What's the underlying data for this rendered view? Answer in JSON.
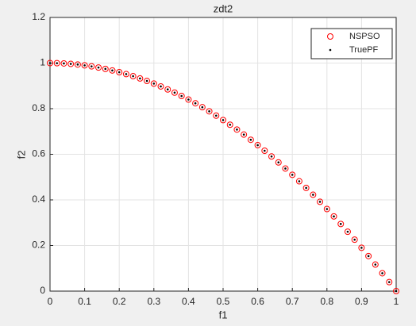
{
  "chart_data": {
    "type": "scatter",
    "title": "zdt2",
    "x_label": "f1",
    "y_label": "f2",
    "xlim": [
      0,
      1
    ],
    "ylim": [
      0,
      1.2
    ],
    "xticks": [
      0,
      0.1,
      0.2,
      0.3,
      0.4,
      0.5,
      0.6,
      0.7,
      0.8,
      0.9,
      1
    ],
    "yticks": [
      0,
      0.2,
      0.4,
      0.6,
      0.8,
      1,
      1.2
    ],
    "grid": true,
    "legend": "northeast",
    "series": [
      {
        "name": "NSPSO",
        "color": "#ff0000",
        "marker": "circle",
        "x": [
          0,
          0.02,
          0.04,
          0.06,
          0.08,
          0.1,
          0.12,
          0.14,
          0.16,
          0.18,
          0.2,
          0.22,
          0.24,
          0.26,
          0.28,
          0.3,
          0.32,
          0.34,
          0.36,
          0.38,
          0.4,
          0.42,
          0.44,
          0.46,
          0.48,
          0.5,
          0.52,
          0.54,
          0.56,
          0.58,
          0.6,
          0.62,
          0.64,
          0.66,
          0.68,
          0.7,
          0.72,
          0.74,
          0.76,
          0.78,
          0.8,
          0.82,
          0.84,
          0.86,
          0.88,
          0.9,
          0.92,
          0.94,
          0.96,
          0.98,
          1
        ],
        "values": [
          1,
          0.9996,
          0.9984,
          0.9964,
          0.9936,
          0.99,
          0.9856,
          0.9804,
          0.9744,
          0.9676,
          0.96,
          0.9516,
          0.9424,
          0.9324,
          0.9216,
          0.91,
          0.8976,
          0.8844,
          0.8704,
          0.8556,
          0.84,
          0.8236,
          0.8064,
          0.7884,
          0.7696,
          0.75,
          0.7296,
          0.7084,
          0.6864,
          0.6636,
          0.64,
          0.6156,
          0.5904,
          0.5644,
          0.5376,
          0.51,
          0.4816,
          0.4524,
          0.4224,
          0.3916,
          0.36,
          0.3276,
          0.2944,
          0.2604,
          0.2256,
          0.19,
          0.1536,
          0.1164,
          0.0784,
          0.0396,
          0
        ]
      },
      {
        "name": "TruePF",
        "color": "#000000",
        "marker": "dot",
        "x": [
          0,
          0.02,
          0.04,
          0.06,
          0.08,
          0.1,
          0.12,
          0.14,
          0.16,
          0.18,
          0.2,
          0.22,
          0.24,
          0.26,
          0.28,
          0.3,
          0.32,
          0.34,
          0.36,
          0.38,
          0.4,
          0.42,
          0.44,
          0.46,
          0.48,
          0.5,
          0.52,
          0.54,
          0.56,
          0.58,
          0.6,
          0.62,
          0.64,
          0.66,
          0.68,
          0.7,
          0.72,
          0.74,
          0.76,
          0.78,
          0.8,
          0.82,
          0.84,
          0.86,
          0.88,
          0.9,
          0.92,
          0.94,
          0.96,
          0.98,
          1
        ],
        "values": [
          1,
          0.9996,
          0.9984,
          0.9964,
          0.9936,
          0.99,
          0.9856,
          0.9804,
          0.9744,
          0.9676,
          0.96,
          0.9516,
          0.9424,
          0.9324,
          0.9216,
          0.91,
          0.8976,
          0.8844,
          0.8704,
          0.8556,
          0.84,
          0.8236,
          0.8064,
          0.7884,
          0.7696,
          0.75,
          0.7296,
          0.7084,
          0.6864,
          0.6636,
          0.64,
          0.6156,
          0.5904,
          0.5644,
          0.5376,
          0.51,
          0.4816,
          0.4524,
          0.4224,
          0.3916,
          0.36,
          0.3276,
          0.2944,
          0.2604,
          0.2256,
          0.19,
          0.1536,
          0.1164,
          0.0784,
          0.0396,
          0
        ]
      }
    ]
  }
}
